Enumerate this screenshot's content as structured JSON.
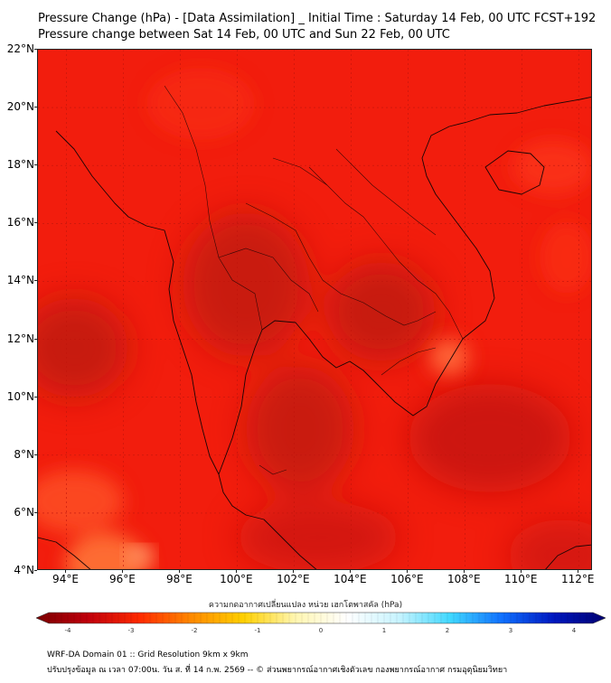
{
  "title": {
    "line1": "Pressure Change (hPa) - [Data Assimilation] _ Initial Time : Saturday 14 Feb, 00 UTC FCST+192",
    "line2": "Pressure change between Sat 14 Feb, 00 UTC and Sun 22 Feb, 00 UTC"
  },
  "map": {
    "lat_labels": [
      "22°N",
      "20°N",
      "18°N",
      "16°N",
      "14°N",
      "12°N",
      "10°N",
      "8°N",
      "6°N",
      "4°N"
    ],
    "lon_labels": [
      "94°E",
      "96°E",
      "98°E",
      "100°E",
      "102°E",
      "104°E",
      "106°E",
      "108°E",
      "110°E",
      "112°E"
    ],
    "lat_range": [
      4,
      22
    ],
    "lon_range": [
      93,
      112.5
    ],
    "base_color": "#f21d0d",
    "dark_color": "#b0160e",
    "light_color": "#ff5a2a"
  },
  "colorbar": {
    "label": "ความกดอากาศเปลี่ยนแปลง หน่วย เฮกโตพาสคัล (hPa)",
    "tick_labels": [
      "-4",
      "-3",
      "-2",
      "-1",
      "0",
      "1",
      "2",
      "3",
      "4"
    ],
    "range": [
      -4.3,
      4.3
    ],
    "colors": [
      "#7a0000",
      "#c0000c",
      "#ff2a00",
      "#ff8a00",
      "#ffd000",
      "#fff6b0",
      "#ffffff",
      "#c8f4ff",
      "#40d8ff",
      "#1070ff",
      "#0018c0",
      "#000070"
    ]
  },
  "footer": {
    "line1": "WRF-DA Domain 01 :: Grid Resolution 9km x 9km",
    "line2": "ปรับปรุงข้อมูล ณ เวลา 07:00น. วัน ส. ที่ 14 ก.พ. 2569 -- © ส่วนพยากรณ์อากาศเชิงตัวเลข กองพยากรณ์อากาศ กรมอุตุนิยมวิทยา"
  }
}
